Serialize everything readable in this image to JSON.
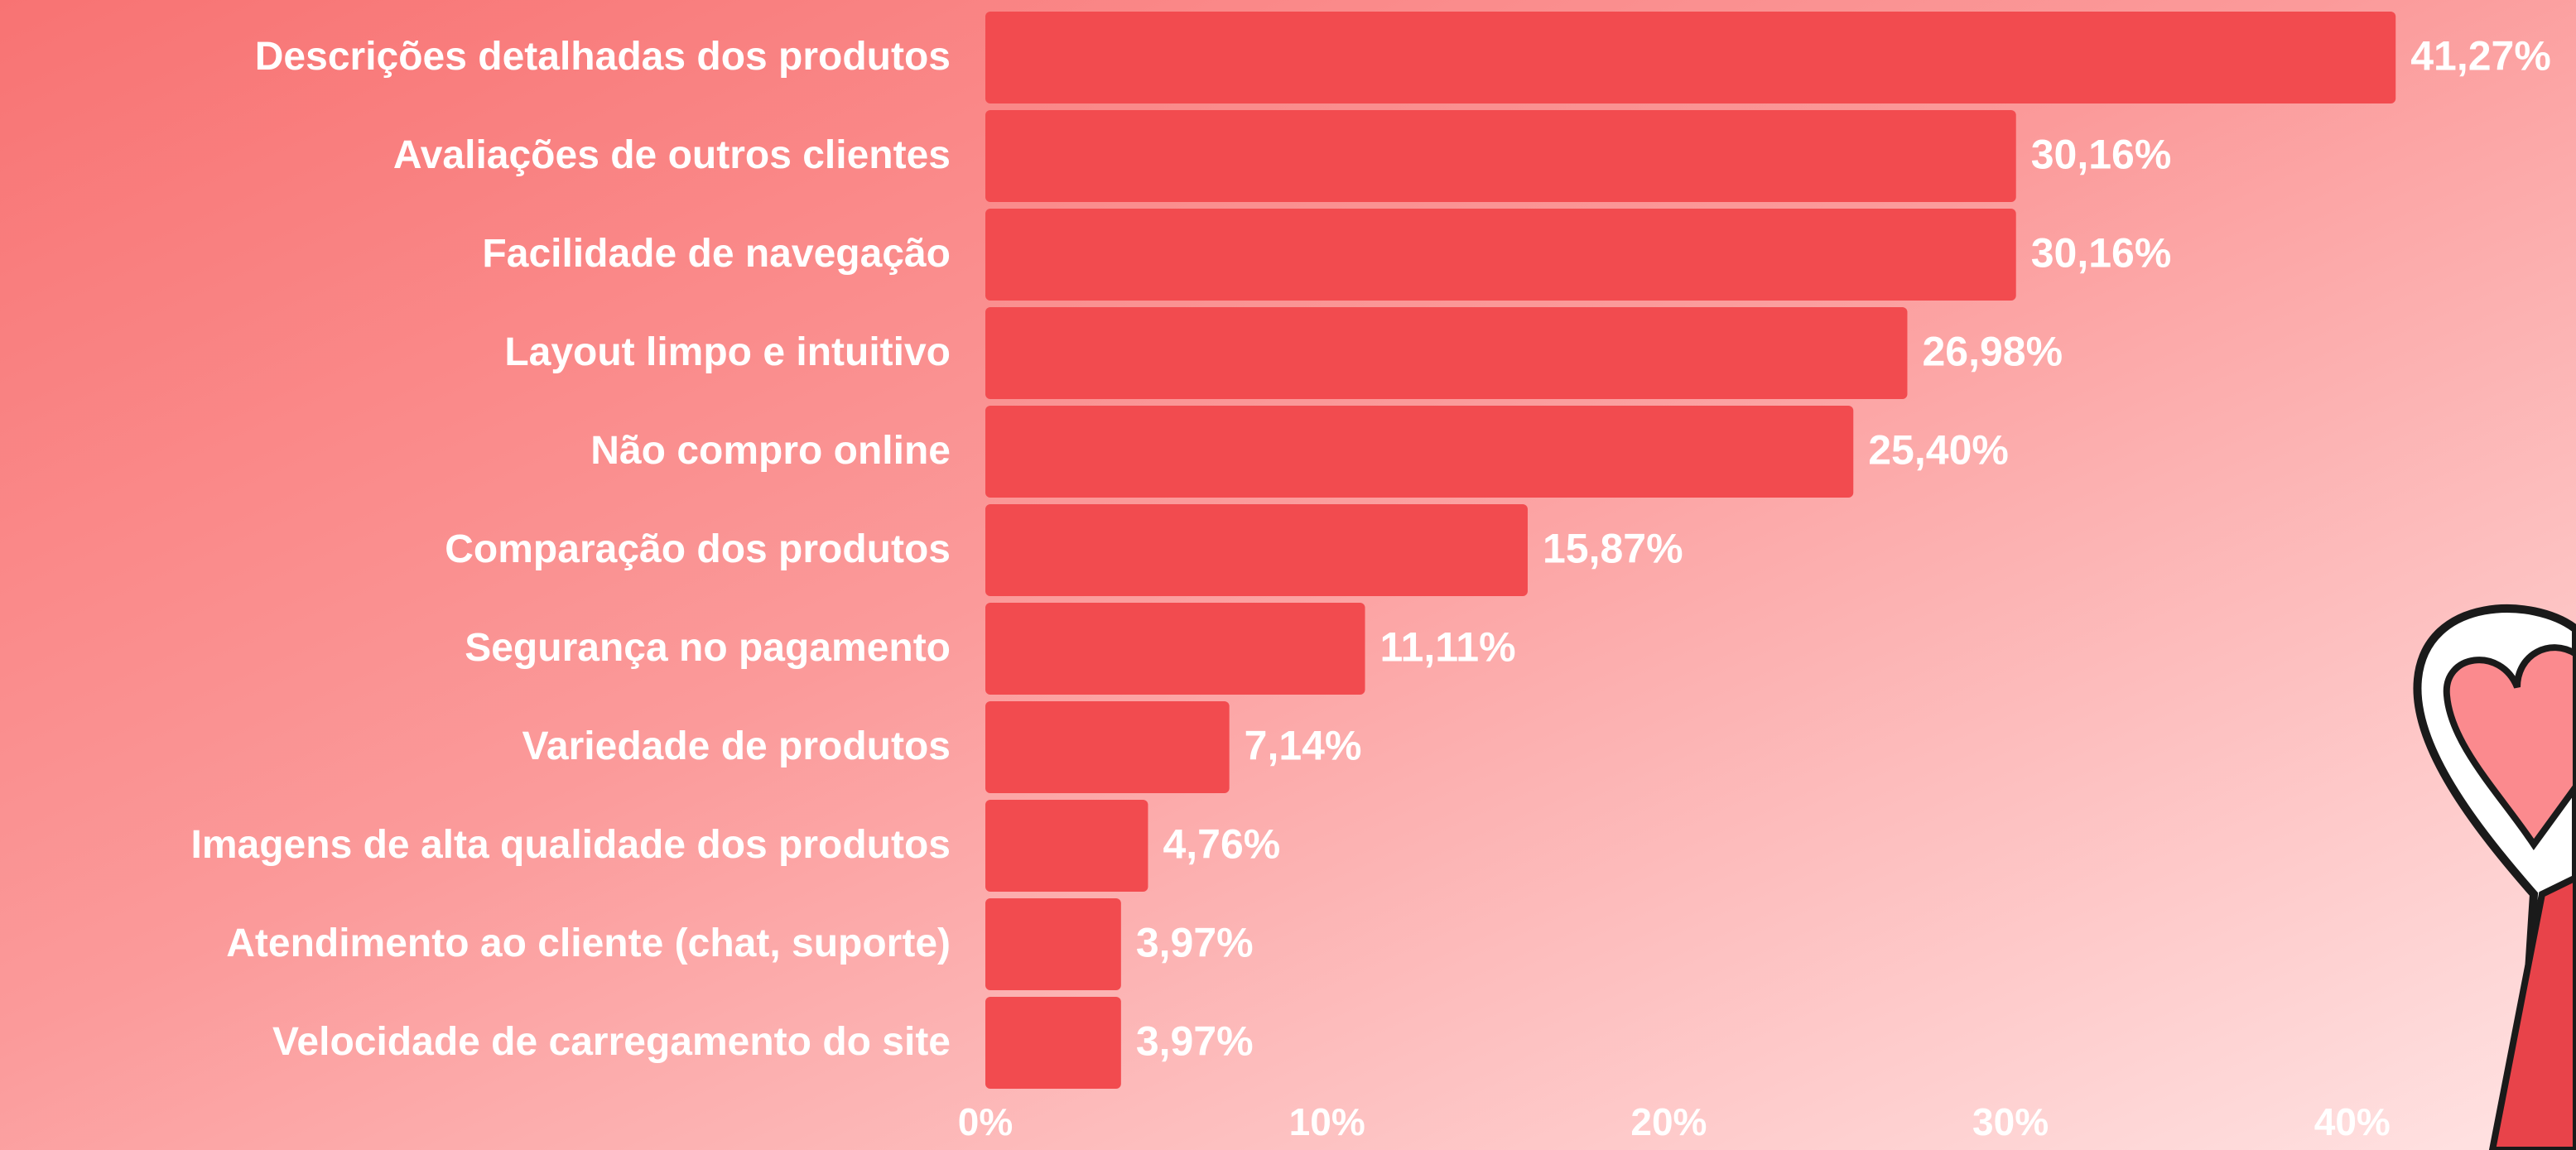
{
  "chart_data": {
    "type": "bar",
    "orientation": "horizontal",
    "categories": [
      "Descrições detalhadas dos produtos",
      "Avaliações de outros clientes",
      "Facilidade de navegação",
      "Layout limpo e intuitivo",
      "Não compro online",
      "Comparação dos produtos",
      "Segurança no pagamento",
      "Variedade de produtos",
      "Imagens de alta qualidade dos produtos",
      "Atendimento ao cliente (chat, suporte)",
      "Velocidade de carregamento do site"
    ],
    "values": [
      41.27,
      30.16,
      30.16,
      26.98,
      25.4,
      15.87,
      11.11,
      7.14,
      4.76,
      3.97,
      3.97
    ],
    "value_labels": [
      "41,27%",
      "30,16%",
      "30,16%",
      "26,98%",
      "25,40%",
      "15,87%",
      "11,11%",
      "7,14%",
      "4,76%",
      "3,97%",
      "3,97%"
    ],
    "color": "#f24b4f",
    "xlim": [
      0,
      45
    ],
    "xticks": [
      {
        "value": 0,
        "label": "0%"
      },
      {
        "value": 10,
        "label": "10%"
      },
      {
        "value": 20,
        "label": "20%"
      },
      {
        "value": 30,
        "label": "30%"
      },
      {
        "value": 40,
        "label": "40%"
      }
    ],
    "grid": false
  }
}
